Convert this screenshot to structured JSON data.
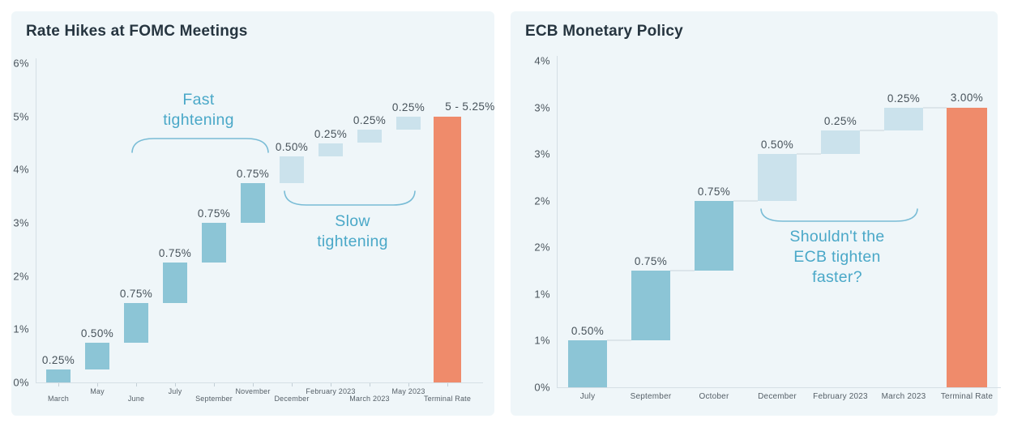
{
  "page": {
    "background": "#ffffff"
  },
  "palette": {
    "card_bg": "#eff6f9",
    "dark_bar": "#8cc5d6",
    "light_bar": "#cbe2ec",
    "terminal_bar": "#ef8b6b",
    "annotation_text": "#4aa8c8",
    "brace": "#79bcd6",
    "axis_line": "#d5dfe5",
    "connector": "#dce5ea",
    "x_tick": "#c3cfd6",
    "title": "#263540",
    "y_tick_label": "#4a545c",
    "x_label": "#566068",
    "value_label": "#47525a"
  },
  "chart_data": [
    {
      "type": "waterfall",
      "title": "Rate Hikes at FOMC Meetings",
      "categories": [
        "March",
        "May",
        "June",
        "July",
        "September",
        "November",
        "December",
        "February 2023",
        "March 2023",
        "May 2023",
        "Terminal Rate"
      ],
      "values": [
        0.25,
        0.5,
        0.75,
        0.75,
        0.75,
        0.75,
        0.5,
        0.25,
        0.25,
        0.25
      ],
      "bar_labels": [
        "0.25%",
        "0.50%",
        "0.75%",
        "0.75%",
        "0.75%",
        "0.75%",
        "0.50%",
        "0.25%",
        "0.25%",
        "0.25%"
      ],
      "bar_styles": [
        "dark",
        "dark",
        "dark",
        "dark",
        "dark",
        "dark",
        "light",
        "light",
        "light",
        "light"
      ],
      "terminal": {
        "category": "Terminal Rate",
        "value": 5.0,
        "label": "5 - 5.25%"
      },
      "y_axis": {
        "min": 0,
        "max": 6,
        "ticks": [
          {
            "v": 0,
            "label": "0%"
          },
          {
            "v": 1,
            "label": "1%"
          },
          {
            "v": 2,
            "label": "2%"
          },
          {
            "v": 3,
            "label": "3%"
          },
          {
            "v": 4,
            "label": "4%"
          },
          {
            "v": 5,
            "label": "5%"
          },
          {
            "v": 6,
            "label": "6%"
          }
        ]
      },
      "x_axis": {
        "staggered": true,
        "tick_marks": true
      },
      "connectors": false,
      "grid": false,
      "legend": false,
      "annotations": [
        {
          "text": "Fast\ntightening",
          "brace_direction": "down"
        },
        {
          "text": "Slow\ntightening",
          "brace_direction": "up"
        }
      ]
    },
    {
      "type": "waterfall",
      "title": "ECB Monetary Policy",
      "categories": [
        "July",
        "September",
        "October",
        "December",
        "February 2023",
        "March 2023",
        "Terminal Rate"
      ],
      "values": [
        0.5,
        0.75,
        0.75,
        0.5,
        0.25,
        0.25
      ],
      "bar_labels": [
        "0.50%",
        "0.75%",
        "0.75%",
        "0.50%",
        "0.25%",
        "0.25%"
      ],
      "bar_styles": [
        "dark",
        "dark",
        "dark",
        "light",
        "light",
        "light"
      ],
      "terminal": {
        "category": "Terminal Rate",
        "value": 3.0,
        "label": "3.00%"
      },
      "y_axis": {
        "min": 0,
        "max": 3.5,
        "ticks": [
          {
            "v": 0,
            "label": "0%"
          },
          {
            "v": 0.5,
            "label": "1%"
          },
          {
            "v": 1,
            "label": "1%"
          },
          {
            "v": 1.5,
            "label": "2%"
          },
          {
            "v": 2,
            "label": "2%"
          },
          {
            "v": 2.5,
            "label": "3%"
          },
          {
            "v": 3,
            "label": "3%"
          },
          {
            "v": 3.5,
            "label": "4%"
          }
        ]
      },
      "x_axis": {
        "staggered": false,
        "tick_marks": false
      },
      "connectors": true,
      "grid": false,
      "legend": false,
      "annotations": [
        {
          "text": "Shouldn't the\nECB tighten\nfaster?",
          "brace_direction": "up"
        }
      ]
    }
  ]
}
